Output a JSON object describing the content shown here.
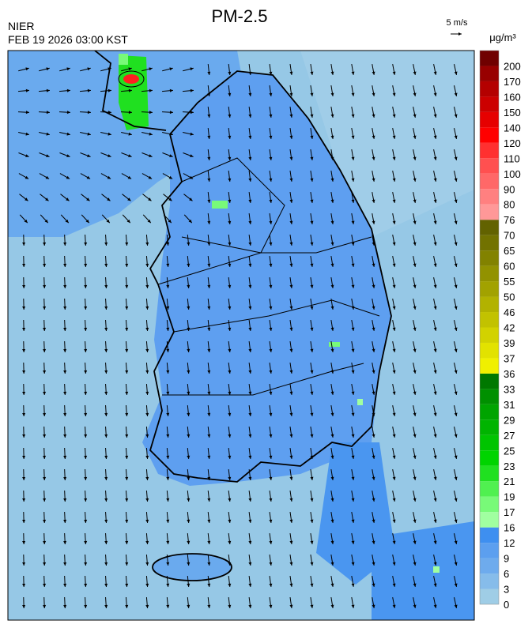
{
  "header": {
    "title": "PM-2.5",
    "agency": "NIER",
    "datetime": "FEB 19 2026 03:00 KST",
    "wind_scale": "5 m/s",
    "unit": "μg/m³"
  },
  "colorbar": {
    "levels": [
      0,
      3,
      6,
      9,
      12,
      16,
      17,
      19,
      21,
      23,
      25,
      27,
      29,
      31,
      33,
      36,
      37,
      39,
      42,
      46,
      50,
      55,
      60,
      65,
      70,
      76,
      80,
      90,
      100,
      110,
      120,
      140,
      150,
      160,
      170,
      200
    ],
    "colors": [
      "#9fcde6",
      "#86bcea",
      "#6eabed",
      "#5c9fef",
      "#3e8ff0",
      "#a0ffa0",
      "#78fa78",
      "#50f050",
      "#20e020",
      "#00d400",
      "#00c400",
      "#00b400",
      "#00a400",
      "#009000",
      "#007800",
      "#f0f000",
      "#e2e200",
      "#d2d200",
      "#c2c200",
      "#b2b200",
      "#a2a200",
      "#929200",
      "#828200",
      "#727200",
      "#626200",
      "#ff9898",
      "#ff8080",
      "#ff6868",
      "#ff5050",
      "#ff3030",
      "#ff0000",
      "#e60000",
      "#cc0000",
      "#b40000",
      "#980000",
      "#700000"
    ]
  }
}
